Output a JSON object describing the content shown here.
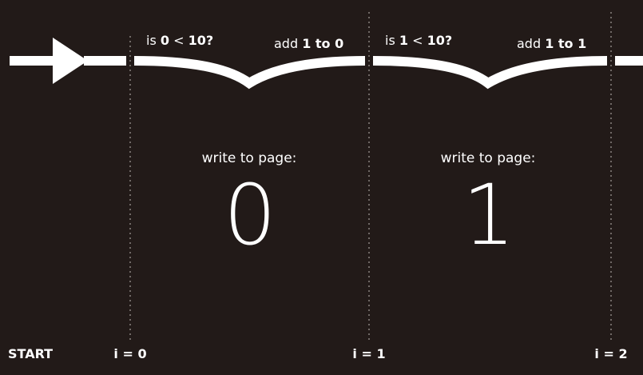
{
  "colors": {
    "background": "#221a18",
    "foreground": "#ffffff",
    "divider": "#8a8380"
  },
  "loop_labels": [
    {
      "check_prefix": "is ",
      "check_value": "0",
      "check_operator": " < ",
      "check_limit": "10?",
      "increment_prefix": "add ",
      "increment_value": "1 to 0",
      "write_label": "write to page:",
      "output": "0"
    },
    {
      "check_prefix": "is ",
      "check_value": "1",
      "check_operator": " < ",
      "check_limit": "10?",
      "increment_prefix": "add ",
      "increment_value": "1 to 1",
      "write_label": "write to page:",
      "output": "1"
    }
  ],
  "bottom_labels": {
    "start": "START",
    "i0": "i = 0",
    "i1": "i = 1",
    "i2": "i = 2"
  },
  "icons": {
    "arrow": "arrow-right-icon"
  }
}
